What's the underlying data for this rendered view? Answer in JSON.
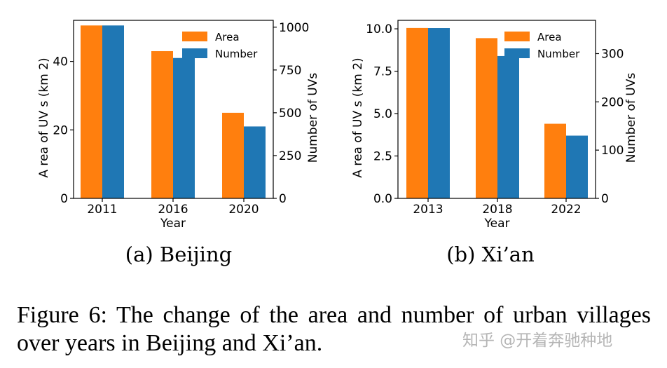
{
  "figure_caption": "Figure 6: The change of the area and number of urban villages over years in Beijing and Xi’an.",
  "watermark": "知乎 @开着奔驰种地",
  "colors": {
    "area": "#ff7f0e",
    "number": "#1f77b4"
  },
  "chart_data": [
    {
      "type": "bar",
      "caption": "(a) Beijing",
      "categories": [
        "2011",
        "2016",
        "2020"
      ],
      "xlabel": "Year",
      "ylabel_left": "A rea of UV s (km 2)",
      "ylabel_right": "Number of UVs",
      "ylim_left": [
        0,
        52
      ],
      "ylim_right": [
        0,
        1040
      ],
      "yticks_left": [
        0,
        20,
        40
      ],
      "yticks_right": [
        0,
        250,
        500,
        750,
        1000
      ],
      "legend": "top-right",
      "series": [
        {
          "name": "Area",
          "axis": "left",
          "values": [
            50.5,
            43,
            25
          ]
        },
        {
          "name": "Number",
          "axis": "right",
          "values": [
            1010,
            820,
            420
          ]
        }
      ]
    },
    {
      "type": "bar",
      "caption": "(b) Xi’an",
      "categories": [
        "2013",
        "2018",
        "2022"
      ],
      "xlabel": "Year",
      "ylabel_left": "A rea of UV s (km 2)",
      "ylabel_right": "Number of UVs",
      "ylim_left": [
        0,
        10.5
      ],
      "ylim_right": [
        0,
        369
      ],
      "yticks_left": [
        "0.0",
        "2.5",
        "5.0",
        "7.5",
        "10.0"
      ],
      "yticks_right": [
        0,
        100,
        200,
        300
      ],
      "legend": "top-right",
      "series": [
        {
          "name": "Area",
          "axis": "left",
          "values": [
            10.05,
            9.45,
            4.4
          ]
        },
        {
          "name": "Number",
          "axis": "right",
          "values": [
            353,
            295,
            130
          ]
        }
      ]
    }
  ]
}
